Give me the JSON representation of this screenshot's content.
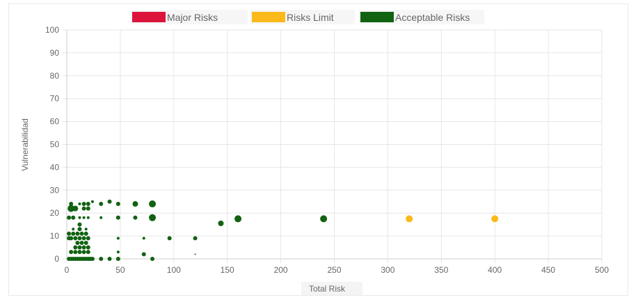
{
  "chart_data": {
    "type": "scatter",
    "title": "",
    "xlabel": "Total Risk",
    "ylabel": "Vulnerabilidad",
    "xlim": [
      0,
      500
    ],
    "ylim": [
      0,
      100
    ],
    "xticks": [
      "0",
      "50",
      "100",
      "150",
      "200",
      "250",
      "300",
      "350",
      "400",
      "450",
      "500"
    ],
    "yticks": [
      "0",
      "10",
      "20",
      "30",
      "40",
      "50",
      "60",
      "70",
      "80",
      "90",
      "100"
    ],
    "grid": true,
    "legend": "top",
    "series": [
      {
        "name": "Major Risks",
        "color": "#dc143c",
        "points": []
      },
      {
        "name": "Risks Limit",
        "color": "#fbb91a",
        "points": [
          {
            "x": 320,
            "y": 17.5,
            "r": 5
          },
          {
            "x": 400,
            "y": 17.5,
            "r": 5
          }
        ]
      },
      {
        "name": "Acceptable Risks",
        "color": "#116211",
        "points": [
          {
            "x": 2,
            "y": 0,
            "r": 3
          },
          {
            "x": 4,
            "y": 0,
            "r": 3
          },
          {
            "x": 6,
            "y": 0,
            "r": 3
          },
          {
            "x": 8,
            "y": 0,
            "r": 3
          },
          {
            "x": 10,
            "y": 0,
            "r": 3
          },
          {
            "x": 12,
            "y": 0,
            "r": 3
          },
          {
            "x": 14,
            "y": 0,
            "r": 3
          },
          {
            "x": 16,
            "y": 0,
            "r": 3
          },
          {
            "x": 18,
            "y": 0,
            "r": 3
          },
          {
            "x": 20,
            "y": 0,
            "r": 3
          },
          {
            "x": 22,
            "y": 0,
            "r": 3
          },
          {
            "x": 24,
            "y": 0,
            "r": 3
          },
          {
            "x": 32,
            "y": 0,
            "r": 3
          },
          {
            "x": 40,
            "y": 0,
            "r": 3
          },
          {
            "x": 48,
            "y": 0,
            "r": 3
          },
          {
            "x": 80,
            "y": 0,
            "r": 3
          },
          {
            "x": 4,
            "y": 3,
            "r": 3
          },
          {
            "x": 8,
            "y": 3,
            "r": 3
          },
          {
            "x": 12,
            "y": 3,
            "r": 3
          },
          {
            "x": 16,
            "y": 3,
            "r": 3
          },
          {
            "x": 20,
            "y": 3,
            "r": 3
          },
          {
            "x": 48,
            "y": 3,
            "r": 2
          },
          {
            "x": 72,
            "y": 2,
            "r": 3
          },
          {
            "x": 8,
            "y": 5,
            "r": 3
          },
          {
            "x": 12,
            "y": 5,
            "r": 3
          },
          {
            "x": 16,
            "y": 5,
            "r": 3
          },
          {
            "x": 20,
            "y": 5,
            "r": 3
          },
          {
            "x": 10,
            "y": 7,
            "r": 3
          },
          {
            "x": 14,
            "y": 7,
            "r": 3
          },
          {
            "x": 18,
            "y": 7,
            "r": 3
          },
          {
            "x": 2,
            "y": 9,
            "r": 3
          },
          {
            "x": 4,
            "y": 9,
            "r": 3
          },
          {
            "x": 8,
            "y": 9,
            "r": 3
          },
          {
            "x": 12,
            "y": 9,
            "r": 3
          },
          {
            "x": 16,
            "y": 9,
            "r": 3
          },
          {
            "x": 20,
            "y": 9,
            "r": 3
          },
          {
            "x": 48,
            "y": 9,
            "r": 2
          },
          {
            "x": 96,
            "y": 9,
            "r": 3
          },
          {
            "x": 120,
            "y": 9,
            "r": 3
          },
          {
            "x": 72,
            "y": 9,
            "r": 2
          },
          {
            "x": 2,
            "y": 11,
            "r": 3
          },
          {
            "x": 6,
            "y": 11,
            "r": 3
          },
          {
            "x": 10,
            "y": 11,
            "r": 3
          },
          {
            "x": 14,
            "y": 11,
            "r": 3
          },
          {
            "x": 18,
            "y": 11,
            "r": 3
          },
          {
            "x": 6,
            "y": 13,
            "r": 2
          },
          {
            "x": 12,
            "y": 13,
            "r": 3
          },
          {
            "x": 18,
            "y": 13,
            "r": 2
          },
          {
            "x": 12,
            "y": 15,
            "r": 3
          },
          {
            "x": 2,
            "y": 18,
            "r": 3
          },
          {
            "x": 6,
            "y": 18,
            "r": 3
          },
          {
            "x": 12,
            "y": 18,
            "r": 2
          },
          {
            "x": 16,
            "y": 18,
            "r": 2
          },
          {
            "x": 20,
            "y": 18,
            "r": 2
          },
          {
            "x": 32,
            "y": 18,
            "r": 2
          },
          {
            "x": 48,
            "y": 18,
            "r": 3
          },
          {
            "x": 64,
            "y": 18,
            "r": 3
          },
          {
            "x": 80,
            "y": 18,
            "r": 5
          },
          {
            "x": 144,
            "y": 15.5,
            "r": 4
          },
          {
            "x": 160,
            "y": 17.5,
            "r": 5
          },
          {
            "x": 240,
            "y": 17.5,
            "r": 5
          },
          {
            "x": 4,
            "y": 22,
            "r": 5
          },
          {
            "x": 8,
            "y": 22,
            "r": 4
          },
          {
            "x": 16,
            "y": 22,
            "r": 3
          },
          {
            "x": 20,
            "y": 22,
            "r": 3
          },
          {
            "x": 4,
            "y": 24,
            "r": 3
          },
          {
            "x": 12,
            "y": 24,
            "r": 2
          },
          {
            "x": 16,
            "y": 24,
            "r": 3
          },
          {
            "x": 20,
            "y": 24,
            "r": 3
          },
          {
            "x": 24,
            "y": 25,
            "r": 2
          },
          {
            "x": 32,
            "y": 24,
            "r": 3
          },
          {
            "x": 40,
            "y": 25,
            "r": 3
          },
          {
            "x": 48,
            "y": 24,
            "r": 3
          },
          {
            "x": 64,
            "y": 24,
            "r": 4
          },
          {
            "x": 80,
            "y": 24,
            "r": 5
          },
          {
            "x": 120,
            "y": 2,
            "r": 1
          }
        ]
      }
    ]
  }
}
